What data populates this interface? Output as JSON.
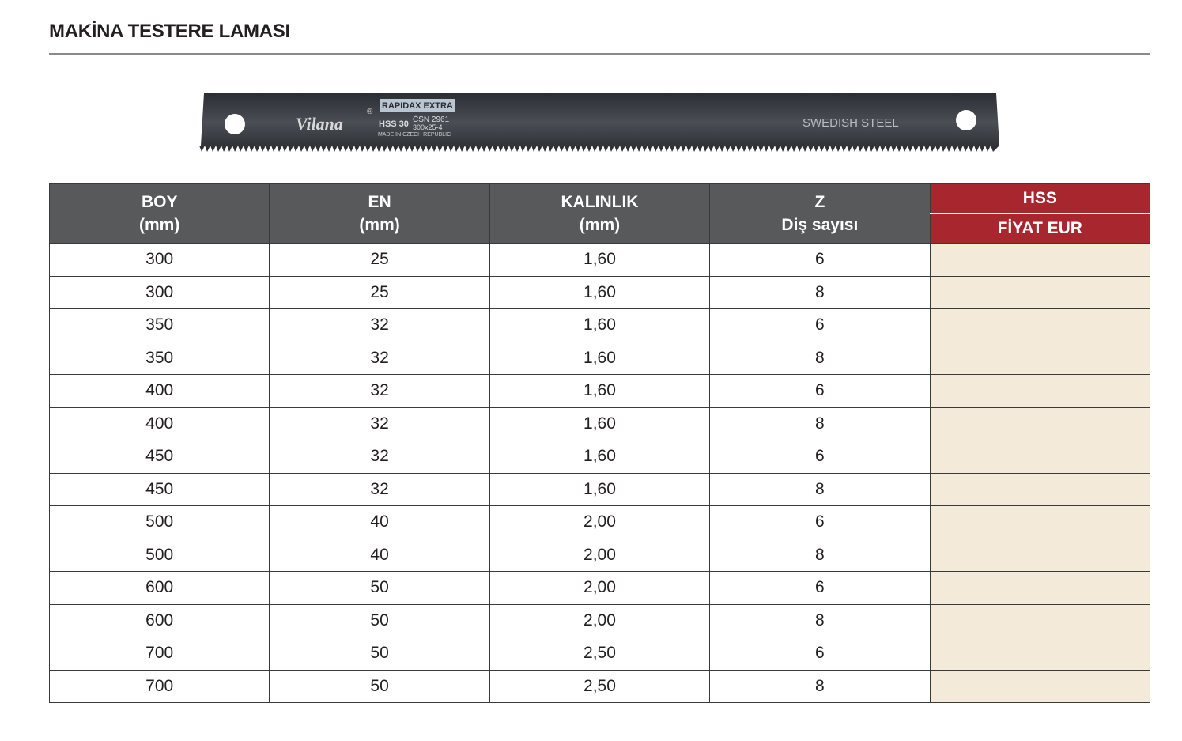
{
  "header": {
    "title": "MAKİNA TESTERE LAMASI"
  },
  "blade": {
    "brand": "Vilana",
    "registered": "®",
    "series": "RAPIDAX EXTRA",
    "grade": "HSS 30",
    "standard": "ČSN 2961",
    "size": "300x25-4",
    "origin": "MADE IN CZECH REPUBLIC",
    "steel": "SWEDISH STEEL"
  },
  "table": {
    "columns": [
      [
        "BOY",
        "(mm)"
      ],
      [
        "EN",
        "(mm)"
      ],
      [
        "KALINLIK",
        "(mm)"
      ],
      [
        "Z",
        "Diş sayısı"
      ],
      [
        "HSS",
        "FİYAT EUR"
      ]
    ],
    "rows": [
      [
        "300",
        "25",
        "1,60",
        "6"
      ],
      [
        "300",
        "25",
        "1,60",
        "8"
      ],
      [
        "350",
        "32",
        "1,60",
        "6"
      ],
      [
        "350",
        "32",
        "1,60",
        "8"
      ],
      [
        "400",
        "32",
        "1,60",
        "6"
      ],
      [
        "400",
        "32",
        "1,60",
        "8"
      ],
      [
        "450",
        "32",
        "1,60",
        "6"
      ],
      [
        "450",
        "32",
        "1,60",
        "8"
      ],
      [
        "500",
        "40",
        "2,00",
        "6"
      ],
      [
        "500",
        "40",
        "2,00",
        "8"
      ],
      [
        "600",
        "50",
        "2,00",
        "6"
      ],
      [
        "600",
        "50",
        "2,00",
        "8"
      ],
      [
        "700",
        "50",
        "2,50",
        "6"
      ],
      [
        "700",
        "50",
        "2,50",
        "8"
      ]
    ]
  }
}
